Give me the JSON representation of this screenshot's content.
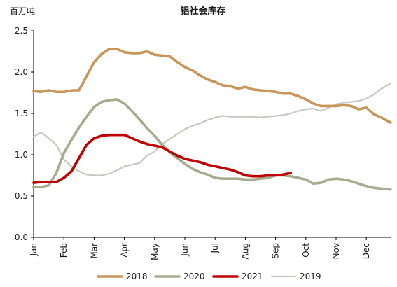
{
  "chart_data": {
    "type": "line",
    "title": "铝社会库存",
    "unit_label": "百万吨",
    "ylabel": "",
    "xlabel": "",
    "ylim": [
      0.0,
      2.5
    ],
    "yticks": [
      "0.0",
      "0.5",
      "1.0",
      "1.5",
      "2.0",
      "2.5"
    ],
    "ytick_values": [
      0.0,
      0.5,
      1.0,
      1.5,
      2.0,
      2.5
    ],
    "xlim": [
      0,
      11.8
    ],
    "months": [
      "Jan",
      "Feb",
      "Mar",
      "Apr",
      "May",
      "Jun",
      "Jul",
      "Aug",
      "Sep",
      "Oct",
      "Nov",
      "Dec"
    ],
    "grid": false,
    "legend_position": "bottom",
    "series": [
      {
        "name": "2018",
        "color": "#c9965a",
        "x": [
          0,
          0.25,
          0.5,
          0.75,
          1.0,
          1.3,
          1.5,
          1.75,
          2.0,
          2.25,
          2.5,
          2.75,
          3.0,
          3.25,
          3.5,
          3.75,
          4.0,
          4.25,
          4.5,
          4.75,
          5.0,
          5.25,
          5.5,
          5.75,
          6.0,
          6.25,
          6.5,
          6.75,
          7.0,
          7.25,
          7.5,
          7.75,
          8.0,
          8.25,
          8.5,
          8.75,
          9.0,
          9.25,
          9.5,
          9.75,
          10.0,
          10.25,
          10.5,
          10.75,
          11.0,
          11.25,
          11.5,
          11.8
        ],
        "values": [
          1.77,
          1.76,
          1.78,
          1.76,
          1.76,
          1.78,
          1.78,
          1.95,
          2.12,
          2.22,
          2.28,
          2.28,
          2.24,
          2.23,
          2.23,
          2.25,
          2.21,
          2.2,
          2.19,
          2.12,
          2.06,
          2.02,
          1.96,
          1.91,
          1.88,
          1.84,
          1.83,
          1.8,
          1.82,
          1.79,
          1.78,
          1.77,
          1.76,
          1.74,
          1.74,
          1.71,
          1.67,
          1.62,
          1.59,
          1.59,
          1.59,
          1.6,
          1.59,
          1.55,
          1.57,
          1.49,
          1.45,
          1.39
        ]
      },
      {
        "name": "2020",
        "color": "#a7ab8f",
        "x": [
          0,
          0.25,
          0.5,
          0.75,
          1.0,
          1.25,
          1.5,
          1.75,
          2.0,
          2.25,
          2.5,
          2.75,
          3.0,
          3.25,
          3.5,
          3.75,
          4.0,
          4.25,
          4.5,
          4.75,
          5.0,
          5.25,
          5.5,
          5.75,
          6.0,
          6.25,
          6.5,
          6.75,
          7.0,
          7.25,
          7.5,
          7.75,
          8.0,
          8.25,
          8.5,
          8.75,
          9.0,
          9.25,
          9.5,
          9.75,
          10.0,
          10.25,
          10.5,
          10.75,
          11.0,
          11.25,
          11.5,
          11.8
        ],
        "values": [
          0.61,
          0.61,
          0.63,
          0.78,
          1.02,
          1.18,
          1.33,
          1.46,
          1.58,
          1.64,
          1.66,
          1.67,
          1.62,
          1.53,
          1.43,
          1.32,
          1.23,
          1.12,
          1.03,
          0.96,
          0.89,
          0.83,
          0.79,
          0.76,
          0.72,
          0.71,
          0.71,
          0.71,
          0.7,
          0.7,
          0.71,
          0.72,
          0.75,
          0.75,
          0.74,
          0.72,
          0.7,
          0.65,
          0.66,
          0.7,
          0.71,
          0.7,
          0.68,
          0.65,
          0.62,
          0.6,
          0.59,
          0.58
        ]
      },
      {
        "name": "2021",
        "color": "#c00000",
        "x": [
          0,
          0.25,
          0.5,
          0.75,
          1.0,
          1.25,
          1.5,
          1.75,
          2.0,
          2.25,
          2.5,
          2.75,
          3.0,
          3.25,
          3.5,
          3.75,
          4.0,
          4.25,
          4.5,
          4.75,
          5.0,
          5.25,
          5.5,
          5.75,
          6.0,
          6.25,
          6.5,
          6.75,
          7.0,
          7.25,
          7.5,
          7.75,
          8.0,
          8.25,
          8.5
        ],
        "values": [
          0.66,
          0.67,
          0.67,
          0.67,
          0.72,
          0.8,
          0.96,
          1.12,
          1.2,
          1.23,
          1.24,
          1.24,
          1.24,
          1.2,
          1.16,
          1.13,
          1.11,
          1.09,
          1.04,
          0.99,
          0.95,
          0.93,
          0.91,
          0.88,
          0.86,
          0.84,
          0.82,
          0.79,
          0.75,
          0.74,
          0.74,
          0.75,
          0.75,
          0.76,
          0.78
        ]
      },
      {
        "name": "2019",
        "color": "#c8c8c0",
        "x": [
          0,
          0.25,
          0.5,
          0.75,
          1.0,
          1.25,
          1.5,
          1.75,
          2.0,
          2.25,
          2.5,
          2.75,
          3.0,
          3.25,
          3.5,
          3.75,
          4.0,
          4.25,
          4.5,
          4.75,
          5.0,
          5.25,
          5.5,
          5.75,
          6.0,
          6.25,
          6.5,
          6.75,
          7.0,
          7.25,
          7.5,
          7.75,
          8.0,
          8.25,
          8.5,
          8.75,
          9.0,
          9.25,
          9.5,
          9.75,
          10.0,
          10.25,
          10.5,
          10.75,
          11.0,
          11.25,
          11.5,
          11.8
        ],
        "values": [
          1.22,
          1.27,
          1.2,
          1.12,
          0.94,
          0.86,
          0.8,
          0.76,
          0.75,
          0.75,
          0.77,
          0.81,
          0.86,
          0.88,
          0.9,
          0.99,
          1.04,
          1.13,
          1.19,
          1.25,
          1.31,
          1.35,
          1.38,
          1.42,
          1.45,
          1.47,
          1.46,
          1.46,
          1.46,
          1.46,
          1.45,
          1.46,
          1.47,
          1.48,
          1.5,
          1.53,
          1.55,
          1.56,
          1.53,
          1.57,
          1.61,
          1.63,
          1.64,
          1.65,
          1.68,
          1.73,
          1.8,
          1.86
        ]
      }
    ]
  }
}
